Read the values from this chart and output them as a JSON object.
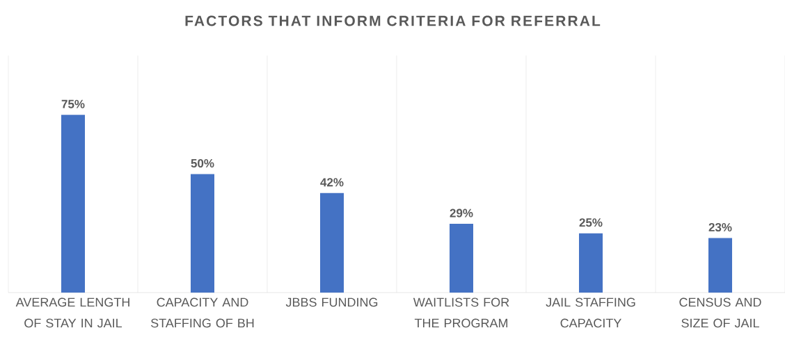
{
  "chart_data": {
    "type": "bar",
    "title": "FACTORS THAT INFORM CRITERIA FOR REFERRAL",
    "categories": [
      "AVERAGE LENGTH OF STAY IN JAIL",
      "CAPACITY AND STAFFING OF BH",
      "JBBS FUNDING",
      "WAITLISTS FOR THE PROGRAM",
      "JAIL STAFFING CAPACITY",
      "CENSUS AND SIZE OF JAIL"
    ],
    "values": [
      75,
      50,
      42,
      29,
      25,
      23
    ],
    "value_labels": [
      "75%",
      "50%",
      "42%",
      "29%",
      "25%",
      "23%"
    ],
    "color": "#4472c4",
    "ylim": [
      0,
      100
    ],
    "grid": "x"
  }
}
